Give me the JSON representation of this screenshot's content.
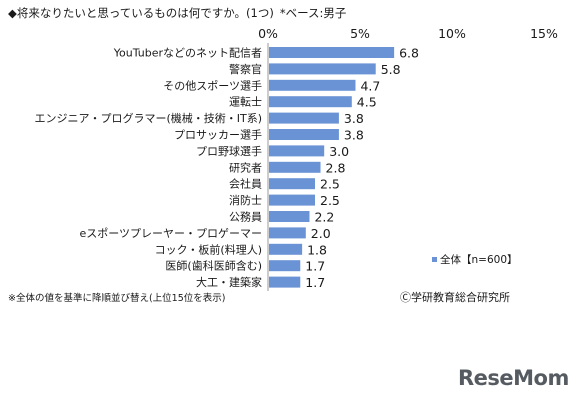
{
  "title": "◆将来なりたいと思っているものは何ですか。(1つ)",
  "base_note": "*ベース:男子",
  "footnote": "※全体の値を基準に降順並び替え(上位15位を表示)",
  "source": "Ⓒ学研教育総合研究所",
  "watermark": "ReseMom",
  "colors": {
    "bar": "#6a93d6",
    "axis": "#9a9a9a",
    "text": "#1a1a1a"
  },
  "chart_data": {
    "type": "bar",
    "orientation": "horizontal",
    "categories": [
      "YouTuberなどのネット配信者",
      "警察官",
      "その他スポーツ選手",
      "運転士",
      "エンジニア・プログラマー(機械・技術・IT系)",
      "プロサッカー選手",
      "プロ野球選手",
      "研究者",
      "会社員",
      "消防士",
      "公務員",
      "eスポーツプレーヤー・プロゲーマー",
      "コック・板前(料理人)",
      "医師(歯科医師含む)",
      "大工・建築家"
    ],
    "series": [
      {
        "name": "全体【n=600】",
        "values": [
          6.8,
          5.8,
          4.7,
          4.5,
          3.8,
          3.8,
          3.0,
          2.8,
          2.5,
          2.5,
          2.2,
          2.0,
          1.8,
          1.7,
          1.7
        ]
      }
    ],
    "value_labels": [
      "6.8",
      "5.8",
      "4.7",
      "4.5",
      "3.8",
      "3.8",
      "3.0",
      "2.8",
      "2.5",
      "2.5",
      "2.2",
      "2.0",
      "1.8",
      "1.7",
      "1.7"
    ],
    "ticks": [
      "0%",
      "5%",
      "10%",
      "15%"
    ],
    "tick_values": [
      0,
      5,
      10,
      15
    ],
    "xlim": [
      0,
      15
    ],
    "legend": "bottom-right",
    "grid": false
  }
}
